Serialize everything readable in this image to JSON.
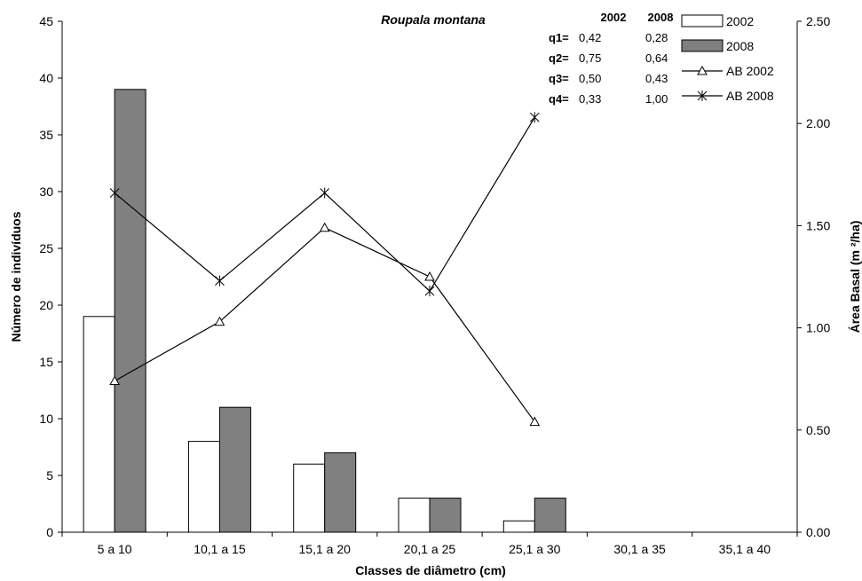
{
  "chart_data": {
    "type": "bar",
    "title": "Roupala montana",
    "xlabel": "Classes de diâmetro (cm)",
    "ylabel": "Número de indivíduos",
    "y2label": "Área Basal (m ²/ha)",
    "ylim": [
      0,
      45
    ],
    "y2lim": [
      0,
      2.5
    ],
    "yticks": [
      "0",
      "5",
      "10",
      "15",
      "20",
      "25",
      "30",
      "35",
      "40",
      "45"
    ],
    "y2ticks": [
      "0.00",
      "0.50",
      "1.00",
      "1.50",
      "2.00",
      "2.50"
    ],
    "categories": [
      "5 a 10",
      "10,1 a 15",
      "15,1 a 20",
      "20,1 a 25",
      "25,1 a 30",
      "30,1 a 35",
      "35,1 a 40"
    ],
    "series": [
      {
        "name": "2002",
        "kind": "bar",
        "color": "#ffffff",
        "values": [
          19,
          8,
          6,
          3,
          1,
          0,
          0
        ]
      },
      {
        "name": "2008",
        "kind": "bar",
        "color": "#808080",
        "values": [
          39,
          11,
          7,
          3,
          3,
          0,
          0
        ]
      },
      {
        "name": "AB 2002",
        "kind": "line",
        "axis": "right",
        "marker": "triangle",
        "values": [
          0.74,
          1.03,
          1.49,
          1.25,
          0.54,
          null,
          null
        ]
      },
      {
        "name": "AB 2008",
        "kind": "line",
        "axis": "right",
        "marker": "asterisk",
        "values": [
          1.66,
          1.23,
          1.66,
          1.18,
          2.03,
          null,
          null
        ]
      }
    ],
    "q_table": {
      "headers": [
        "2002",
        "2008"
      ],
      "rows": [
        {
          "label": "q1=",
          "v2002": "0,42",
          "v2008": "0,28"
        },
        {
          "label": "q2=",
          "v2002": "0,75",
          "v2008": "0,64"
        },
        {
          "label": "q3=",
          "v2002": "0,50",
          "v2008": "0,43"
        },
        {
          "label": "q4=",
          "v2002": "0,33",
          "v2008": "1,00"
        }
      ]
    },
    "legend_position": "top-right",
    "grid": false
  }
}
